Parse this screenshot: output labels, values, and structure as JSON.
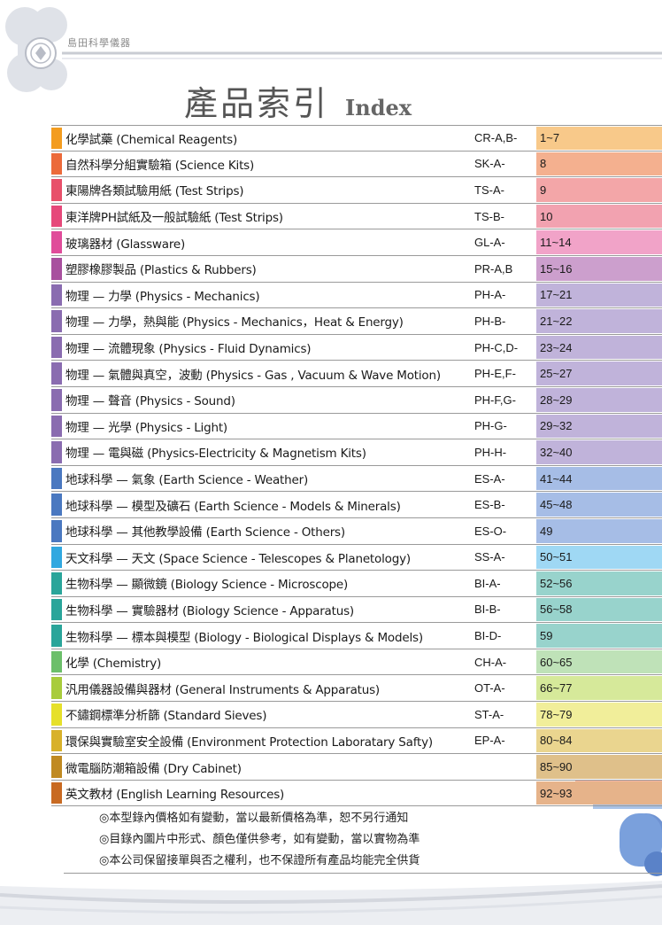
{
  "header": {
    "brand": "島田科學儀器",
    "title_zh": "產品索引",
    "title_en": "Index"
  },
  "colors": {
    "decor_gray": "#dfe2e8",
    "line_gray": "#9a9a9a"
  },
  "rows": [
    {
      "name": "化學試藥 (Chemical Reagents)",
      "code": "CR-A,B-",
      "pages": "1~7",
      "swatch": "#f39c1f",
      "bg": "#f8c98a"
    },
    {
      "name": "自然科學分組實驗箱 (Science Kits)",
      "code": "SK-A-",
      "pages": "8",
      "swatch": "#ec6a3a",
      "bg": "#f4b08f"
    },
    {
      "name": "東陽牌各類試驗用紙 (Test Strips)",
      "code": "TS-A-",
      "pages": "9",
      "swatch": "#e8506a",
      "bg": "#f3a6a8"
    },
    {
      "name": "東洋牌PH試紙及一般試驗紙 (Test Strips)",
      "code": "TS-B-",
      "pages": "10",
      "swatch": "#e6487a",
      "bg": "#f2a2b0"
    },
    {
      "name": "玻璃器材 (Glassware)",
      "code": "GL-A-",
      "pages": "11~14",
      "swatch": "#e04c9a",
      "bg": "#f1a3c8"
    },
    {
      "name": "塑膠橡膠製品 (Plastics & Rubbers)",
      "code": "PR-A,B",
      "pages": "15~16",
      "swatch": "#a8509e",
      "bg": "#cc9fcd"
    },
    {
      "name": "物理 — 力學 (Physics - Mechanics)",
      "code": "PH-A-",
      "pages": "17~21",
      "swatch": "#8a6cb0",
      "bg": "#c0b3da"
    },
    {
      "name": "物理 — 力學，熱與能 (Physics - Mechanics，Heat & Energy)",
      "code": "PH-B-",
      "pages": "21~22",
      "swatch": "#8a6cb0",
      "bg": "#c0b3da"
    },
    {
      "name": "物理 — 流體現象 (Physics - Fluid Dynamics)",
      "code": "PH-C,D-",
      "pages": "23~24",
      "swatch": "#8a6cb0",
      "bg": "#c0b3da"
    },
    {
      "name": "物理 — 氣體與真空，波動 (Physics - Gas , Vacuum & Wave Motion)",
      "code": "PH-E,F-",
      "pages": "25~27",
      "swatch": "#8a6cb0",
      "bg": "#c0b3da"
    },
    {
      "name": "物理 — 聲音 (Physics - Sound)",
      "code": "PH-F,G-",
      "pages": "28~29",
      "swatch": "#8a6cb0",
      "bg": "#c0b3da"
    },
    {
      "name": "物理 — 光學 (Physics - Light)",
      "code": "PH-G-",
      "pages": "29~32",
      "swatch": "#8a6cb0",
      "bg": "#c0b3da"
    },
    {
      "name": "物理 — 電與磁 (Physics-Electricity & Magnetism Kits)",
      "code": "PH-H-",
      "pages": "32~40",
      "swatch": "#8a6cb0",
      "bg": "#c0b3da"
    },
    {
      "name": "地球科學 — 氣象 (Earth Science - Weather)",
      "code": "ES-A-",
      "pages": "41~44",
      "swatch": "#4a78c0",
      "bg": "#a6bde6"
    },
    {
      "name": "地球科學 — 模型及礦石 (Earth Science - Models & Minerals)",
      "code": "ES-B-",
      "pages": "45~48",
      "swatch": "#4a78c0",
      "bg": "#a6bde6"
    },
    {
      "name": "地球科學 — 其他教學設備 (Earth Science - Others)",
      "code": "ES-O-",
      "pages": "49",
      "swatch": "#4a78c0",
      "bg": "#a6bde6"
    },
    {
      "name": "天文科學 — 天文 (Space Science - Telescopes & Planetology)",
      "code": "SS-A-",
      "pages": "50~51",
      "swatch": "#31a8e0",
      "bg": "#9fd8f4"
    },
    {
      "name": "生物科學 — 顯微鏡 (Biology Science - Microscope)",
      "code": "BI-A-",
      "pages": "52~56",
      "swatch": "#2aa59a",
      "bg": "#98d3cc"
    },
    {
      "name": "生物科學 — 實驗器材 (Biology Science - Apparatus)",
      "code": "BI-B-",
      "pages": "56~58",
      "swatch": "#2aa59a",
      "bg": "#98d3cc"
    },
    {
      "name": "生物科學 — 標本與模型 (Biology - Biological Displays & Models)",
      "code": "BI-D-",
      "pages": "59",
      "swatch": "#2aa59a",
      "bg": "#98d3cc"
    },
    {
      "name": "化學 (Chemistry)",
      "code": "CH-A-",
      "pages": "60~65",
      "swatch": "#6cbf6a",
      "bg": "#bfe2b8"
    },
    {
      "name": "汎用儀器設備與器材 (General Instruments & Apparatus)",
      "code": "OT-A-",
      "pages": "66~77",
      "swatch": "#a8cc3c",
      "bg": "#d6e99a"
    },
    {
      "name": "不鏽鋼標準分析篩 (Standard Sieves)",
      "code": "ST-A-",
      "pages": "78~79",
      "swatch": "#e6e02a",
      "bg": "#f1ee9a"
    },
    {
      "name": "環保與實驗室安全設備 (Environment Protection Laboratary Safty)",
      "code": "EP-A-",
      "pages": "80~84",
      "swatch": "#d8b12a",
      "bg": "#ead58f"
    },
    {
      "name": "微電腦防潮箱設備 (Dry Cabinet)",
      "code": "",
      "pages": "85~90",
      "swatch": "#c08a22",
      "bg": "#dfc08a"
    },
    {
      "name": "英文教材 (English Learning Resources)",
      "code": "",
      "pages": "92~93",
      "swatch": "#c86a22",
      "bg": "#e6b38a"
    }
  ],
  "notes": [
    "◎本型錄內價格如有變動，當以最新價格為準，恕不另行通知",
    "◎目錄內圖片中形式、顏色僅供參考，如有變動，當以實物為準",
    "◎本公司保留接單與否之權利，也不保證所有產品均能完全供貨"
  ]
}
